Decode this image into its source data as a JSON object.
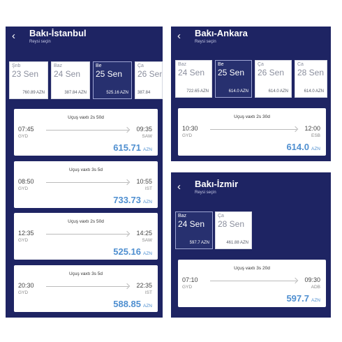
{
  "panels": [
    {
      "route": "Bakı-İstanbul",
      "subtitle": "Reysi seçin",
      "dates": [
        {
          "dow": "Şnb",
          "date": "23 Sen",
          "price": "760.89 AZN",
          "selected": false
        },
        {
          "dow": "Baz",
          "date": "24 Sen",
          "price": "387.84 AZN",
          "selected": false
        },
        {
          "dow": "Be",
          "date": "25 Sen",
          "price": "525.16 AZN",
          "selected": true
        },
        {
          "dow": "Ça",
          "date": "26 Sen",
          "price": "387.84",
          "selected": false
        }
      ],
      "flights": [
        {
          "duration": "Uçuş vaxtı 2s 50d",
          "dep_time": "07:45",
          "dep_airport": "GYD",
          "arr_time": "09:35",
          "arr_airport": "SAW",
          "price": "615.71",
          "currency": "AZN"
        },
        {
          "duration": "Uçuş vaxtı 3s 5d",
          "dep_time": "08:50",
          "dep_airport": "GYD",
          "arr_time": "10:55",
          "arr_airport": "IST",
          "price": "733.73",
          "currency": "AZN"
        },
        {
          "duration": "Uçuş vaxtı 2s 50d",
          "dep_time": "12:35",
          "dep_airport": "GYD",
          "arr_time": "14:25",
          "arr_airport": "SAW",
          "price": "525.16",
          "currency": "AZN"
        },
        {
          "duration": "Uçuş vaxtı 3s 5d",
          "dep_time": "20:30",
          "dep_airport": "GYD",
          "arr_time": "22:35",
          "arr_airport": "IST",
          "price": "588.85",
          "currency": "AZN"
        }
      ]
    },
    {
      "route": "Bakı-Ankara",
      "subtitle": "Reysi seçin",
      "dates": [
        {
          "dow": "Baz",
          "date": "24 Sen",
          "price": "722.65 AZN",
          "selected": false
        },
        {
          "dow": "Be",
          "date": "25 Sen",
          "price": "614.0 AZN",
          "selected": true
        },
        {
          "dow": "Ça",
          "date": "26 Sen",
          "price": "614.0 AZN",
          "selected": false
        },
        {
          "dow": "Ca",
          "date": "28 Sen",
          "price": "614.0 AZN",
          "selected": false
        }
      ],
      "flights": [
        {
          "duration": "Uçuş vaxtı 2s 30d",
          "dep_time": "10:30",
          "dep_airport": "GYD",
          "arr_time": "12:00",
          "arr_airport": "ESB",
          "price": "614.0",
          "currency": "AZN"
        }
      ]
    },
    {
      "route": "Bakı-İzmir",
      "subtitle": "Reysi seçin",
      "dates": [
        {
          "dow": "Baz",
          "date": "24 Sen",
          "price": "597.7 AZN",
          "selected": true
        },
        {
          "dow": "Ça",
          "date": "28 Sen",
          "price": "461.88 AZN",
          "selected": false
        }
      ],
      "flights": [
        {
          "duration": "Uçuş vaxtı 3s 20d",
          "dep_time": "07:10",
          "dep_airport": "GYD",
          "arr_time": "09:30",
          "arr_airport": "ADB",
          "price": "597.7",
          "currency": "AZN"
        }
      ]
    }
  ],
  "icons": {
    "back": "back-arrow-icon",
    "flight_arrow": "arrow-right-icon"
  },
  "colors": {
    "header": "#1e2463",
    "selected_date": "#27306f",
    "price": "#4f8fd0"
  }
}
